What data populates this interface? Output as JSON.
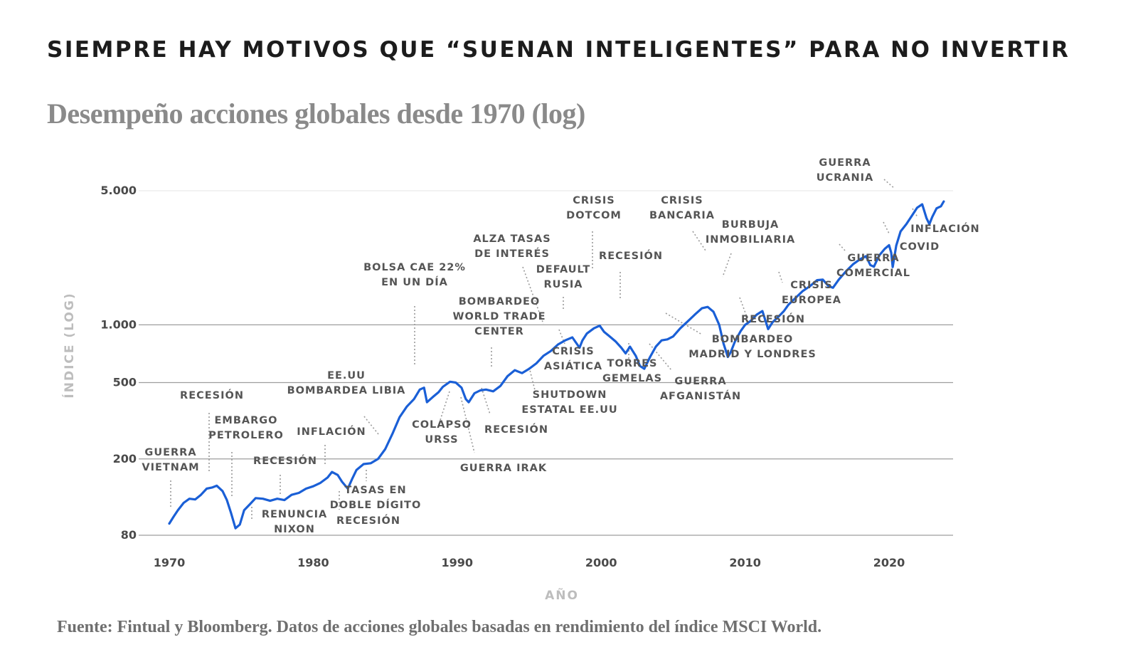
{
  "header": {
    "title": "SIEMPRE HAY MOTIVOS QUE “SUENAN INTELIGENTES” PARA NO INVERTIR",
    "subtitle": "Desempeño acciones globales desde 1970 (log)",
    "source": "Fuente: Fintual y Bloomberg. Datos de acciones globales basadas en rendimiento del índice MSCI World."
  },
  "colors": {
    "line": "#1a5fd6",
    "grid": "#9e9e9e",
    "title": "#1c1c1c",
    "subtitle": "#8a8a8a",
    "annotation": "#555555",
    "axis_label": "#bdbdbd"
  },
  "chart_data": {
    "type": "line",
    "title": "Desempeño acciones globales desde 1970 (log)",
    "xlabel": "AÑO",
    "ylabel": "ÍNDICE (LOG)",
    "yscale": "log",
    "xlim": [
      1970,
      2022
    ],
    "ylim": [
      80,
      5000
    ],
    "x_ticks": [
      {
        "value": 1970,
        "label": "1970"
      },
      {
        "value": 1980,
        "label": "1980"
      },
      {
        "value": 1990,
        "label": "1990"
      },
      {
        "value": 2000,
        "label": "2000"
      },
      {
        "value": 2010,
        "label": "2010"
      },
      {
        "value": 2020,
        "label": "2020"
      }
    ],
    "y_ticks": [
      {
        "value": 80,
        "label": "80"
      },
      {
        "value": 200,
        "label": "200"
      },
      {
        "value": 500,
        "label": "500"
      },
      {
        "value": 1000,
        "label": "1.000"
      },
      {
        "value": 5000,
        "label": "5.000"
      }
    ],
    "grid": true,
    "legend": "none",
    "series": [
      {
        "x": [
          1970.0,
          1970.3,
          1970.6,
          1971.0,
          1971.4,
          1971.8,
          1972.2,
          1972.6,
          1973.0,
          1973.3,
          1973.7,
          1974.0,
          1974.3,
          1974.6,
          1974.9,
          1975.2,
          1975.6,
          1976.0,
          1976.5,
          1977.0,
          1977.5,
          1978.0,
          1978.5,
          1979.0,
          1979.5,
          1980.0,
          1980.5,
          1981.0,
          1981.3,
          1981.7,
          1982.0,
          1982.4,
          1982.7,
          1983.0,
          1983.5,
          1984.0,
          1984.5,
          1985.0,
          1985.5,
          1986.0,
          1986.5,
          1987.0,
          1987.4,
          1987.7,
          1987.9,
          1988.3,
          1988.7,
          1989.0,
          1989.5,
          1989.9,
          1990.3,
          1990.6,
          1990.8,
          1991.2,
          1991.6,
          1992.0,
          1992.5,
          1993.0,
          1993.5,
          1994.0,
          1994.5,
          1995.0,
          1995.5,
          1996.0,
          1996.5,
          1997.0,
          1997.5,
          1998.0,
          1998.5,
          1998.7,
          1999.0,
          1999.5,
          1999.9,
          2000.2,
          2000.6,
          2001.0,
          2001.4,
          2001.7,
          2002.0,
          2002.4,
          2002.7,
          2003.0,
          2003.4,
          2003.8,
          2004.2,
          2004.6,
          2005.0,
          2005.5,
          2006.0,
          2006.5,
          2007.0,
          2007.4,
          2007.8,
          2008.2,
          2008.5,
          2008.8,
          2009.0,
          2009.3,
          2009.7,
          2010.0,
          2010.4,
          2010.8,
          2011.2,
          2011.6,
          2011.9,
          2012.3,
          2012.7,
          2013.0,
          2013.5,
          2014.0,
          2014.5,
          2015.0,
          2015.4,
          2015.8,
          2016.1,
          2016.5,
          2017.0,
          2017.5,
          2018.0,
          2018.4,
          2018.7,
          2018.95,
          2019.3,
          2019.7,
          2020.0,
          2020.15,
          2020.25,
          2020.5,
          2020.8,
          2021.2,
          2021.6,
          2021.95,
          2022.3,
          2022.6,
          2022.8,
          2023.0,
          2023.3,
          2023.6,
          2023.8
        ],
        "y": [
          92,
          100,
          108,
          118,
          124,
          123,
          130,
          140,
          142,
          145,
          136,
          122,
          104,
          87,
          91,
          108,
          116,
          125,
          124,
          121,
          124,
          122,
          130,
          133,
          140,
          144,
          150,
          160,
          171,
          165,
          152,
          140,
          157,
          175,
          188,
          190,
          200,
          225,
          270,
          330,
          375,
          410,
          460,
          470,
          395,
          420,
          445,
          475,
          505,
          500,
          470,
          410,
          395,
          440,
          455,
          460,
          450,
          480,
          540,
          580,
          560,
          590,
          630,
          690,
          730,
          790,
          830,
          860,
          760,
          830,
          900,
          960,
          990,
          920,
          870,
          820,
          760,
          710,
          770,
          690,
          610,
          590,
          680,
          770,
          830,
          840,
          870,
          960,
          1040,
          1130,
          1220,
          1240,
          1170,
          1000,
          800,
          680,
          720,
          820,
          930,
          1000,
          1050,
          1130,
          1180,
          950,
          1030,
          1100,
          1180,
          1270,
          1380,
          1500,
          1590,
          1710,
          1720,
          1590,
          1560,
          1720,
          1900,
          2070,
          2200,
          2280,
          2050,
          2010,
          2290,
          2490,
          2600,
          2380,
          2000,
          2590,
          3070,
          3350,
          3720,
          4080,
          4250,
          3600,
          3350,
          3650,
          4050,
          4150,
          4400
        ]
      }
    ],
    "annotations": [
      {
        "text": [
          "GUERRA",
          "VIETNAM"
        ],
        "year": 1970.0
      },
      {
        "text": [
          "RECESIÓN"
        ],
        "year": 1973.0
      },
      {
        "text": [
          "EMBARGO",
          "PETROLERO"
        ],
        "year": 1974.5
      },
      {
        "text": [
          "RENUNCIA",
          "NIXON"
        ],
        "year": 1974.6
      },
      {
        "text": [
          "RECESIÓN"
        ],
        "year": 1980.0
      },
      {
        "text": [
          "INFLACIÓN"
        ],
        "year": 1981.3
      },
      {
        "text": [
          "RECESIÓN"
        ],
        "year": 1981.7
      },
      {
        "text": [
          "TASAS EN",
          "DOBLE DÍGITO"
        ],
        "year": 1982.5
      },
      {
        "text": [
          "EE.UU",
          "BOMBARDEA LIBIA"
        ],
        "year": 1986.0
      },
      {
        "text": [
          "BOLSA CAE 22%",
          "EN UN DÍA"
        ],
        "year": 1987.8
      },
      {
        "text": [
          "COLAPSO",
          "URSS"
        ],
        "year": 1991.0
      },
      {
        "text": [
          "GUERRA IRAK"
        ],
        "year": 1990.6
      },
      {
        "text": [
          "RECESIÓN"
        ],
        "year": 1991.5
      },
      {
        "text": [
          "BOMBARDEO",
          "WORLD TRADE",
          "CENTER"
        ],
        "year": 1993.0
      },
      {
        "text": [
          "SHUTDOWN",
          "ESTATAL EE.UU"
        ],
        "year": 1995.8
      },
      {
        "text": [
          "ALZA TASAS",
          "DE INTERÉS"
        ],
        "year": 1994.0
      },
      {
        "text": [
          "CRISIS",
          "ASIÁTICA"
        ],
        "year": 1997.5
      },
      {
        "text": [
          "DEFAULT",
          "RUSIA"
        ],
        "year": 1998.7
      },
      {
        "text": [
          "CRISIS",
          "DOTCOM"
        ],
        "year": 2000.0
      },
      {
        "text": [
          "RECESIÓN"
        ],
        "year": 2001.3
      },
      {
        "text": [
          "TORRES",
          "GEMELAS"
        ],
        "year": 2001.7
      },
      {
        "text": [
          "GUERRA",
          "AFGANISTÁN"
        ],
        "year": 2001.8
      },
      {
        "text": [
          "BOMBARDEO",
          "MADRID Y LONDRES"
        ],
        "year": 2004.2
      },
      {
        "text": [
          "CRISIS",
          "BANCARIA"
        ],
        "year": 2007.8
      },
      {
        "text": [
          "BURBUJA",
          "INMOBILIARIA"
        ],
        "year": 2008.0
      },
      {
        "text": [
          "RECESIÓN"
        ],
        "year": 2011.0
      },
      {
        "text": [
          "CRISIS",
          "EUROPEA"
        ],
        "year": 2011.6
      },
      {
        "text": [
          "GUERRA",
          "COMERCIAL"
        ],
        "year": 2018.4
      },
      {
        "text": [
          "COVID"
        ],
        "year": 2020.2
      },
      {
        "text": [
          "GUERRA",
          "UCRANIA"
        ],
        "year": 2022.0
      },
      {
        "text": [
          "INFLACIÓN"
        ],
        "year": 2022.6
      }
    ]
  }
}
